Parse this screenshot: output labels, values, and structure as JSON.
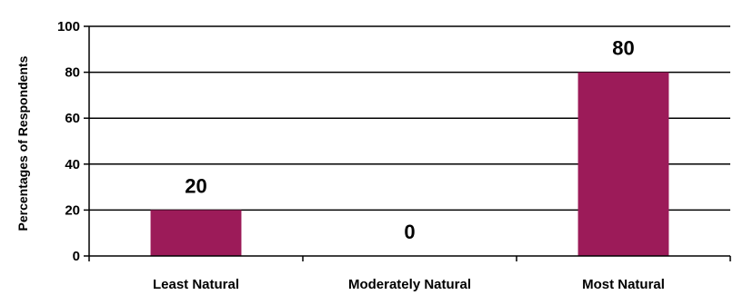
{
  "chart_data": {
    "type": "bar",
    "categories": [
      "Least Natural",
      "Moderately Natural",
      "Most Natural"
    ],
    "values": [
      20,
      0,
      80
    ],
    "data_labels": [
      "20",
      "0",
      "80"
    ],
    "ylabel": "Percentages of Respondents",
    "xlabel": "",
    "ylim": [
      0,
      100
    ],
    "yticks": [
      0,
      20,
      40,
      60,
      80,
      100
    ],
    "ytick_labels": [
      "0",
      "20",
      "40",
      "60",
      "80",
      "100"
    ],
    "grid": true,
    "bar_color": "#9c1b59"
  }
}
